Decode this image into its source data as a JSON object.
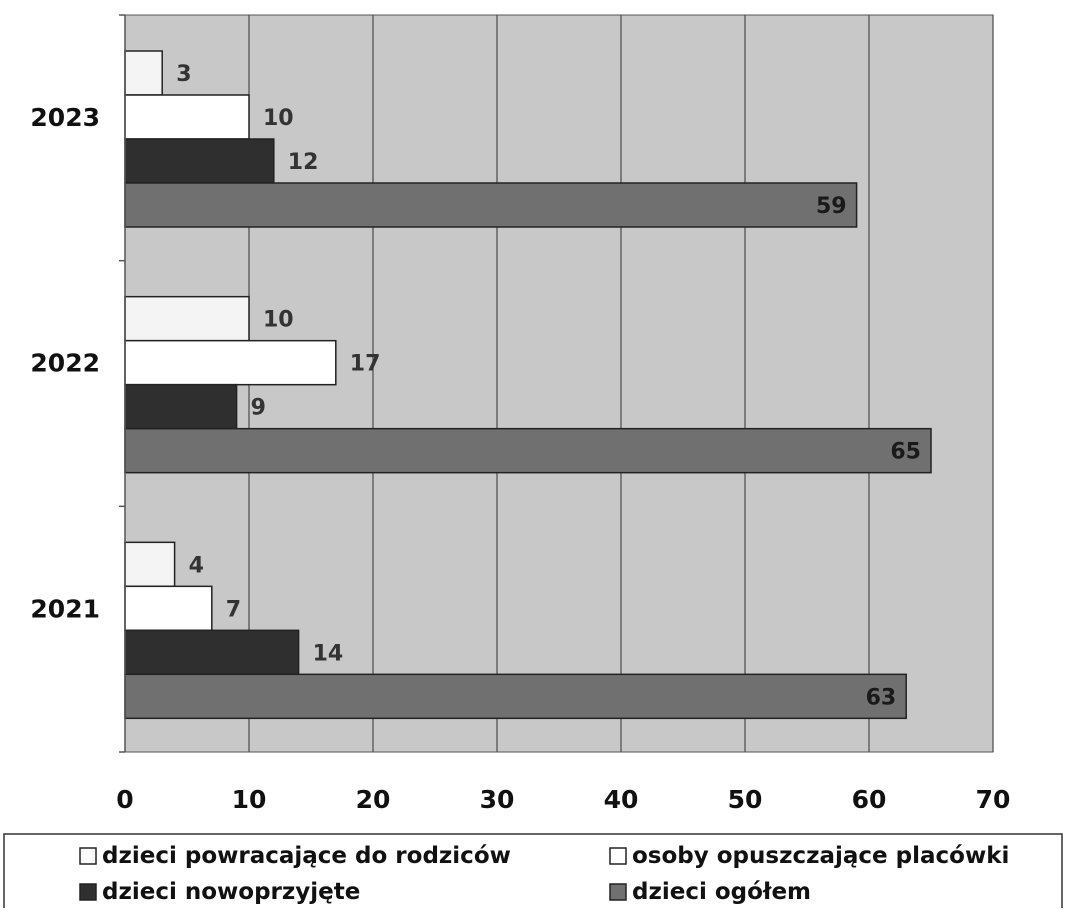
{
  "chart_data": {
    "type": "bar",
    "orientation": "horizontal",
    "categories": [
      "2023",
      "2022",
      "2021"
    ],
    "series": [
      {
        "name": "dzieci powracające do rodziców",
        "values": [
          3,
          10,
          4
        ],
        "color": "#f4f4f4"
      },
      {
        "name": "osoby opuszczające placówki",
        "values": [
          10,
          17,
          7
        ],
        "color": "#ffffff"
      },
      {
        "name": "dzieci nowoprzyjęte",
        "values": [
          12,
          9,
          14
        ],
        "color": "#2f2f2f"
      },
      {
        "name": "dzieci ogółem",
        "values": [
          59,
          65,
          63
        ],
        "color": "#707070"
      }
    ],
    "xlim": [
      0,
      70
    ],
    "xticks": [
      "0",
      "10",
      "20",
      "30",
      "40",
      "50",
      "60",
      "70"
    ],
    "grid": "vertical",
    "legend_position": "bottom",
    "plot_background": "#c8c8c8",
    "title": "",
    "xlabel": "",
    "ylabel": ""
  }
}
